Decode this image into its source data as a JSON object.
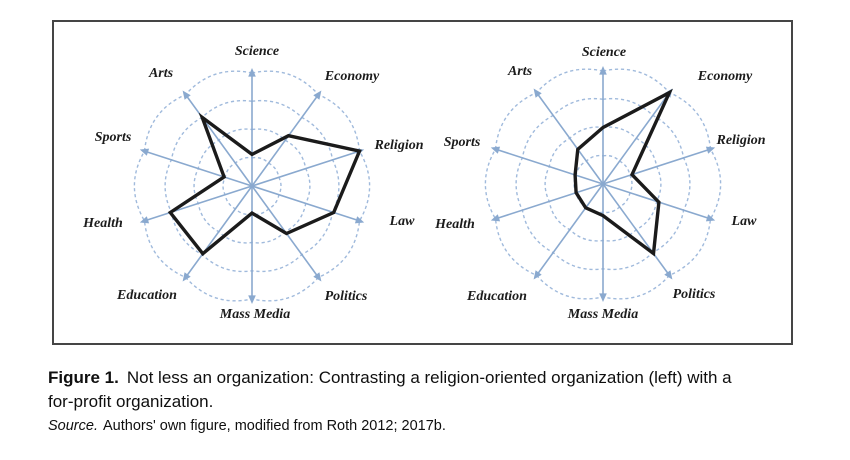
{
  "figure": {
    "caption_label": "Figure 1.",
    "caption_text": "Not less an organization: Contrasting a religion-oriented organization (left) with a for-profit organization.",
    "source_label": "Source.",
    "source_text": "Authors' own figure, modified from Roth 2012; 2017b."
  },
  "colors": {
    "web_blue": "#8aa9cf",
    "ring_blue": "#a0badc",
    "series_black": "#1b1b1b",
    "border": "#454545"
  },
  "chart_data": {
    "type": "radar",
    "title": "",
    "categories": [
      "Science",
      "Economy",
      "Religion",
      "Law",
      "Politics",
      "Mass Media",
      "Education",
      "Health",
      "Sports",
      "Arts"
    ],
    "rings": [
      0.25,
      0.5,
      0.75,
      1.0
    ],
    "scale": {
      "min": 0,
      "max": 1.0
    },
    "grid": "dashed spider web, 4 scalloped rings, 10 spokes with outward arrowheads",
    "legend_position": "none",
    "series": [
      {
        "name": "religion-oriented organization (left chart)",
        "values": [
          0.28,
          0.55,
          1.0,
          0.76,
          0.52,
          0.24,
          0.74,
          0.76,
          0.26,
          0.75
        ]
      },
      {
        "name": "for-profit organization (right chart)",
        "values": [
          0.5,
          1.0,
          0.27,
          0.52,
          0.76,
          0.28,
          0.26,
          0.25,
          0.26,
          0.38
        ]
      }
    ]
  }
}
